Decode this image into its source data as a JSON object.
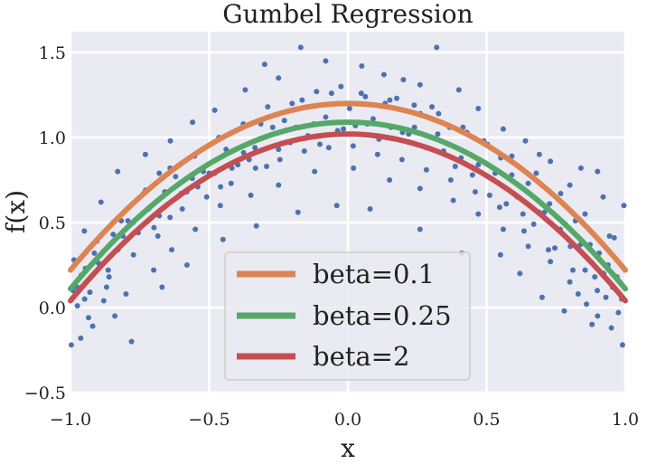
{
  "chart_data": {
    "type": "scatter",
    "title": "Gumbel Regression",
    "xlabel": "x",
    "ylabel": "f(x)",
    "xlim": [
      -1.0,
      1.0
    ],
    "ylim": [
      -0.5,
      1.6
    ],
    "x_ticks": [
      -1.0,
      -0.5,
      0.0,
      0.5,
      1.0
    ],
    "x_tick_labels": [
      "−1.0",
      "−0.5",
      "0.0",
      "0.5",
      "1.0"
    ],
    "y_ticks": [
      -0.5,
      0.0,
      0.5,
      1.0,
      1.5
    ],
    "y_tick_labels": [
      "−0.5",
      "0.0",
      "0.5",
      "1.0",
      "1.5"
    ],
    "grid": true,
    "legend_position": "lower-center",
    "scatter": {
      "color": "#4c72b0",
      "points": [
        [
          -0.991,
          0.1
        ],
        [
          -0.976,
          0.12
        ],
        [
          -0.961,
          0.19
        ],
        [
          -0.946,
          0.23
        ],
        [
          -0.93,
          0.09
        ],
        [
          -0.914,
          0.32
        ],
        [
          -0.898,
          0.26
        ],
        [
          -0.881,
          0.33
        ],
        [
          -0.864,
          0.22
        ],
        [
          -0.846,
          0.43
        ],
        [
          -0.829,
          0.34
        ],
        [
          -0.811,
          0.42
        ],
        [
          -0.793,
          0.51
        ],
        [
          -0.774,
          0.5
        ],
        [
          -0.756,
          0.44
        ],
        [
          -0.737,
          0.67
        ],
        [
          -0.718,
          0.58
        ],
        [
          -0.699,
          0.47
        ],
        [
          -0.68,
          0.54
        ],
        [
          -0.66,
          0.68
        ],
        [
          -0.641,
          0.53
        ],
        [
          -0.621,
          0.77
        ],
        [
          -0.601,
          0.67
        ],
        [
          -0.581,
          0.68
        ],
        [
          -0.561,
          0.76
        ],
        [
          -0.541,
          0.71
        ],
        [
          -0.521,
          0.8
        ],
        [
          -0.5,
          0.79
        ],
        [
          -0.48,
          0.79
        ],
        [
          -0.459,
          0.71
        ],
        [
          -0.439,
          0.93
        ],
        [
          -0.418,
          0.82
        ],
        [
          -0.397,
          0.84
        ],
        [
          -0.376,
          0.91
        ],
        [
          -0.356,
          0.87
        ],
        [
          -0.335,
          0.94
        ],
        [
          -0.314,
          1.08
        ],
        [
          -0.293,
          0.83
        ],
        [
          -0.271,
          1.06
        ],
        [
          -0.25,
          0.93
        ],
        [
          -0.229,
          1.1
        ],
        [
          -0.208,
          0.97
        ],
        [
          -0.187,
          1.06
        ],
        [
          -0.165,
          1.22
        ],
        [
          -0.144,
          1.01
        ],
        [
          -0.123,
          1.08
        ],
        [
          -0.101,
          0.96
        ],
        [
          -0.08,
          1.12
        ],
        [
          -0.059,
          1.26
        ],
        [
          -0.037,
          1.04
        ],
        [
          -0.016,
          1.05
        ],
        [
          0.006,
          1.17
        ],
        [
          0.027,
          1.07
        ],
        [
          0.048,
          1.26
        ],
        [
          0.07,
          1.08
        ],
        [
          0.091,
          1.11
        ],
        [
          0.112,
          0.99
        ],
        [
          0.134,
          1.2
        ],
        [
          0.155,
          1.06
        ],
        [
          0.176,
          1.23
        ],
        [
          0.197,
          1.03
        ],
        [
          0.219,
          1.02
        ],
        [
          0.24,
          1.06
        ],
        [
          0.261,
          1.14
        ],
        [
          0.282,
          0.94
        ],
        [
          0.303,
          1.18
        ],
        [
          0.324,
          1.02
        ],
        [
          0.345,
          0.92
        ],
        [
          0.366,
          1.06
        ],
        [
          0.387,
          0.83
        ],
        [
          0.408,
          0.88
        ],
        [
          0.429,
          1.03
        ],
        [
          0.449,
          0.78
        ],
        [
          0.47,
          0.84
        ],
        [
          0.49,
          0.98
        ],
        [
          0.511,
          0.66
        ],
        [
          0.531,
          0.79
        ],
        [
          0.551,
          0.88
        ],
        [
          0.571,
          0.61
        ],
        [
          0.591,
          0.78
        ],
        [
          0.611,
          0.65
        ],
        [
          0.631,
          0.55
        ],
        [
          0.65,
          0.73
        ],
        [
          0.67,
          0.49
        ],
        [
          0.689,
          0.56
        ],
        [
          0.708,
          0.56
        ],
        [
          0.727,
          0.61
        ],
        [
          0.746,
          0.35
        ],
        [
          0.765,
          0.46
        ],
        [
          0.784,
          0.49
        ],
        [
          0.802,
          0.36
        ],
        [
          0.82,
          0.51
        ],
        [
          0.838,
          0.37
        ],
        [
          0.855,
          0.22
        ],
        [
          0.873,
          0.37
        ],
        [
          0.89,
          0.18
        ],
        [
          0.906,
          0.32
        ],
        [
          0.922,
          0.2
        ],
        [
          0.938,
          0.25
        ],
        [
          0.954,
          0.12
        ],
        [
          -0.949,
          0.05
        ],
        [
          -0.905,
          0.39
        ],
        [
          -0.861,
          0.18
        ],
        [
          -0.817,
          0.51
        ],
        [
          -0.773,
          0.31
        ],
        [
          -0.729,
          0.69
        ],
        [
          -0.685,
          0.42
        ],
        [
          -0.641,
          0.82
        ],
        [
          -0.597,
          0.58
        ],
        [
          -0.553,
          0.89
        ],
        [
          -0.509,
          0.65
        ],
        [
          -0.465,
          1.0
        ],
        [
          -0.421,
          0.73
        ],
        [
          -0.377,
          1.08
        ],
        [
          -0.333,
          0.82
        ],
        [
          -0.289,
          1.18
        ],
        [
          -0.245,
          0.87
        ],
        [
          -0.201,
          1.2
        ],
        [
          -0.157,
          0.92
        ],
        [
          -0.113,
          1.27
        ],
        [
          -0.069,
          0.94
        ],
        [
          -0.025,
          1.3
        ],
        [
          0.019,
          0.95
        ],
        [
          0.063,
          1.24
        ],
        [
          0.107,
          0.9
        ],
        [
          0.151,
          1.22
        ],
        [
          0.195,
          0.87
        ],
        [
          0.239,
          1.19
        ],
        [
          0.283,
          0.81
        ],
        [
          0.327,
          1.14
        ],
        [
          0.371,
          0.75
        ],
        [
          0.415,
          1.06
        ],
        [
          0.459,
          0.68
        ],
        [
          0.503,
          0.96
        ],
        [
          0.547,
          0.59
        ],
        [
          0.591,
          0.89
        ],
        [
          0.635,
          0.45
        ],
        [
          0.679,
          0.79
        ],
        [
          0.723,
          0.34
        ],
        [
          0.767,
          0.67
        ],
        [
          0.811,
          0.22
        ],
        [
          0.855,
          0.55
        ],
        [
          0.899,
          0.1
        ],
        [
          0.943,
          0.42
        ],
        [
          0.987,
          0.05
        ],
        [
          -0.997,
          -0.22
        ],
        [
          -0.987,
          0.28
        ],
        [
          -0.963,
          -0.18
        ],
        [
          -0.935,
          -0.06
        ],
        [
          -0.91,
          0.27
        ],
        [
          -0.88,
          0.04
        ],
        [
          -0.84,
          -0.05
        ],
        [
          -0.8,
          0.08
        ],
        [
          -0.78,
          -0.2
        ],
        [
          -0.7,
          0.22
        ],
        [
          -0.635,
          0.34
        ],
        [
          -0.55,
          0.46
        ],
        [
          -0.46,
          0.6
        ],
        [
          -0.35,
          0.66
        ],
        [
          -0.25,
          0.72
        ],
        [
          -0.12,
          0.8
        ],
        [
          0.02,
          0.82
        ],
        [
          0.15,
          0.75
        ],
        [
          0.26,
          0.7
        ],
        [
          0.38,
          0.63
        ],
        [
          0.47,
          0.55
        ],
        [
          0.56,
          0.46
        ],
        [
          0.65,
          0.36
        ],
        [
          0.73,
          0.27
        ],
        [
          0.8,
          0.15
        ],
        [
          0.86,
          0.02
        ],
        [
          0.9,
          -0.05
        ],
        [
          0.93,
          0.06
        ],
        [
          0.95,
          -0.12
        ],
        [
          0.975,
          -0.03
        ],
        [
          0.99,
          -0.22
        ],
        [
          -0.975,
          0.01
        ],
        [
          -0.92,
          -0.11
        ],
        [
          -0.87,
          0.12
        ],
        [
          0.97,
          0.18
        ],
        [
          -0.3,
          1.43
        ],
        [
          -0.17,
          1.53
        ],
        [
          -0.08,
          1.45
        ],
        [
          0.05,
          1.42
        ],
        [
          0.13,
          1.37
        ],
        [
          0.2,
          1.34
        ],
        [
          0.32,
          1.53
        ],
        [
          -0.25,
          1.35
        ],
        [
          -0.37,
          1.28
        ],
        [
          0.26,
          1.31
        ],
        [
          0.4,
          1.28
        ],
        [
          0.47,
          1.17
        ],
        [
          -0.48,
          1.16
        ],
        [
          -0.56,
          1.09
        ],
        [
          0.56,
          1.05
        ],
        [
          -0.64,
          0.98
        ],
        [
          0.64,
          0.98
        ],
        [
          -0.73,
          0.9
        ],
        [
          0.73,
          0.86
        ],
        [
          0.84,
          0.82
        ],
        [
          -0.83,
          0.8
        ],
        [
          0.9,
          0.8
        ],
        [
          0.92,
          0.65
        ],
        [
          0.96,
          0.41
        ],
        [
          0.995,
          0.6
        ],
        [
          -0.95,
          0.45
        ],
        [
          -0.89,
          0.62
        ],
        [
          0.8,
          0.72
        ],
        [
          0.69,
          0.9
        ],
        [
          -0.68,
          0.79
        ],
        [
          0.41,
          0.32
        ],
        [
          0.26,
          0.46
        ],
        [
          0.08,
          0.58
        ],
        [
          -0.04,
          0.6
        ],
        [
          -0.18,
          0.56
        ],
        [
          -0.33,
          0.48
        ],
        [
          -0.45,
          0.4
        ],
        [
          -0.58,
          0.25
        ],
        [
          -0.67,
          0.12
        ],
        [
          0.62,
          0.2
        ],
        [
          0.55,
          0.31
        ],
        [
          0.7,
          0.06
        ],
        [
          0.78,
          -0.02
        ],
        [
          0.83,
          0.08
        ],
        [
          0.88,
          -0.1
        ]
      ]
    },
    "series": [
      {
        "name": "beta=0.1",
        "color": "#dd8452",
        "peak": 1.2,
        "offset_at_edge": 0.22
      },
      {
        "name": "beta=0.25",
        "color": "#55a868",
        "peak": 1.09,
        "offset_at_edge": 0.11
      },
      {
        "name": "beta=2",
        "color": "#c44e52",
        "peak": 1.02,
        "offset_at_edge": 0.04
      }
    ],
    "legend": [
      "beta=0.1",
      "beta=0.25",
      "beta=2"
    ]
  },
  "colors": {
    "plot_background": "#eaeaf2",
    "grid": "#ffffff",
    "legend_background": "#eaeaf2",
    "legend_border": "#cccccc"
  }
}
